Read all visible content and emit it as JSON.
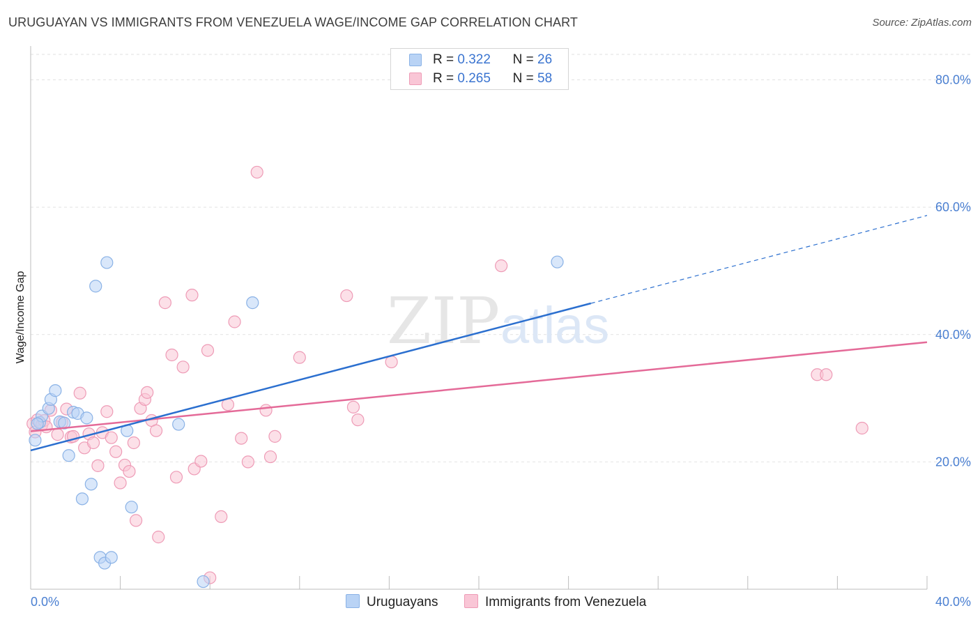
{
  "header": {
    "title": "URUGUAYAN VS IMMIGRANTS FROM VENEZUELA WAGE/INCOME GAP CORRELATION CHART",
    "source": "Source: ZipAtlas.com"
  },
  "legend": {
    "series1": {
      "r_label": "R =",
      "r_value": "0.322",
      "n_label": "N =",
      "n_value": "26"
    },
    "series2": {
      "r_label": "R =",
      "r_value": "0.265",
      "n_label": "N =",
      "n_value": "58"
    }
  },
  "watermark": {
    "zip": "ZIP",
    "atlas": "atlas"
  },
  "colors": {
    "blue_fill": "#b9d3f5",
    "blue_stroke": "#8ab2e6",
    "blue_line": "#2b6fcf",
    "pink_fill": "#f9c6d6",
    "pink_stroke": "#ee9bb6",
    "pink_line": "#e46a98",
    "tick_text": "#4a7fd1"
  },
  "chart_data": {
    "type": "scatter",
    "title": "URUGUAYAN VS IMMIGRANTS FROM VENEZUELA WAGE/INCOME GAP CORRELATION CHART",
    "xlabel": "",
    "ylabel": "Wage/Income Gap",
    "xlim": [
      0,
      40
    ],
    "ylim": [
      0,
      84
    ],
    "x_tick_labels": [
      "0.0%",
      "40.0%"
    ],
    "y_ticks": [
      20,
      40,
      60,
      80
    ],
    "y_tick_labels": [
      "20.0%",
      "40.0%",
      "60.0%",
      "80.0%"
    ],
    "grid": true,
    "legend_placement": "top-center",
    "series": [
      {
        "name": "Uruguayans",
        "r": 0.322,
        "n": 26,
        "points": [
          [
            0.2,
            23.4
          ],
          [
            0.4,
            26.2
          ],
          [
            0.5,
            27.2
          ],
          [
            0.8,
            28.4
          ],
          [
            0.9,
            29.8
          ],
          [
            1.1,
            31.2
          ],
          [
            1.3,
            26.3
          ],
          [
            1.5,
            26.1
          ],
          [
            1.7,
            21.0
          ],
          [
            1.9,
            27.8
          ],
          [
            2.1,
            27.6
          ],
          [
            2.3,
            14.2
          ],
          [
            2.5,
            26.9
          ],
          [
            2.7,
            16.5
          ],
          [
            2.9,
            47.6
          ],
          [
            3.1,
            5.0
          ],
          [
            3.3,
            4.1
          ],
          [
            3.4,
            51.3
          ],
          [
            3.6,
            5.0
          ],
          [
            4.3,
            24.9
          ],
          [
            4.5,
            12.9
          ],
          [
            6.6,
            25.9
          ],
          [
            7.7,
            1.2
          ],
          [
            9.9,
            45.0
          ],
          [
            23.5,
            51.4
          ],
          [
            0.3,
            26.0
          ]
        ],
        "trend": {
          "x0": 0,
          "y0": 21.8,
          "x1": 25,
          "y1": 44.9,
          "dashed_to_x": 40,
          "dashed_to_y": 58.7
        }
      },
      {
        "name": "Immigrants from Venezuela",
        "r": 0.265,
        "n": 58,
        "points": [
          [
            0.1,
            26.0
          ],
          [
            0.2,
            24.7
          ],
          [
            0.3,
            26.6
          ],
          [
            0.5,
            25.8
          ],
          [
            0.6,
            26.5
          ],
          [
            0.7,
            25.5
          ],
          [
            0.9,
            28.1
          ],
          [
            1.2,
            24.3
          ],
          [
            1.4,
            26.2
          ],
          [
            1.6,
            28.3
          ],
          [
            1.8,
            23.9
          ],
          [
            1.9,
            24.0
          ],
          [
            2.2,
            30.8
          ],
          [
            2.4,
            22.2
          ],
          [
            2.6,
            24.4
          ],
          [
            2.8,
            23.0
          ],
          [
            3.0,
            19.4
          ],
          [
            3.2,
            24.6
          ],
          [
            3.4,
            27.9
          ],
          [
            3.6,
            23.8
          ],
          [
            3.8,
            21.6
          ],
          [
            4.0,
            16.7
          ],
          [
            4.2,
            19.5
          ],
          [
            4.4,
            18.5
          ],
          [
            4.6,
            23.0
          ],
          [
            4.7,
            10.8
          ],
          [
            4.9,
            28.4
          ],
          [
            5.1,
            29.8
          ],
          [
            5.2,
            30.9
          ],
          [
            5.4,
            26.5
          ],
          [
            5.6,
            24.9
          ],
          [
            5.7,
            8.2
          ],
          [
            6.0,
            45.0
          ],
          [
            6.3,
            36.8
          ],
          [
            6.5,
            17.6
          ],
          [
            6.8,
            34.9
          ],
          [
            7.2,
            46.2
          ],
          [
            7.3,
            18.9
          ],
          [
            7.6,
            20.1
          ],
          [
            7.9,
            37.5
          ],
          [
            8.0,
            1.8
          ],
          [
            8.5,
            11.4
          ],
          [
            8.8,
            29.0
          ],
          [
            9.1,
            42.0
          ],
          [
            9.4,
            23.7
          ],
          [
            9.7,
            20.0
          ],
          [
            10.1,
            65.5
          ],
          [
            10.5,
            28.1
          ],
          [
            10.7,
            20.8
          ],
          [
            10.9,
            24.0
          ],
          [
            12.0,
            36.4
          ],
          [
            14.1,
            46.1
          ],
          [
            14.4,
            28.6
          ],
          [
            14.6,
            26.6
          ],
          [
            16.1,
            35.7
          ],
          [
            21.0,
            50.8
          ],
          [
            35.1,
            33.7
          ],
          [
            37.1,
            25.3
          ]
        ],
        "extra_points": [
          [
            35.5,
            33.7
          ]
        ],
        "trend": {
          "x0": 0,
          "y0": 24.8,
          "x1": 40,
          "y1": 38.8
        }
      }
    ]
  },
  "bottom_legend": {
    "item1": "Uruguayans",
    "item2": "Immigrants from Venezuela"
  },
  "axis_text": {
    "ylabel": "Wage/Income Gap",
    "x_left": "0.0%",
    "x_right": "40.0%"
  }
}
